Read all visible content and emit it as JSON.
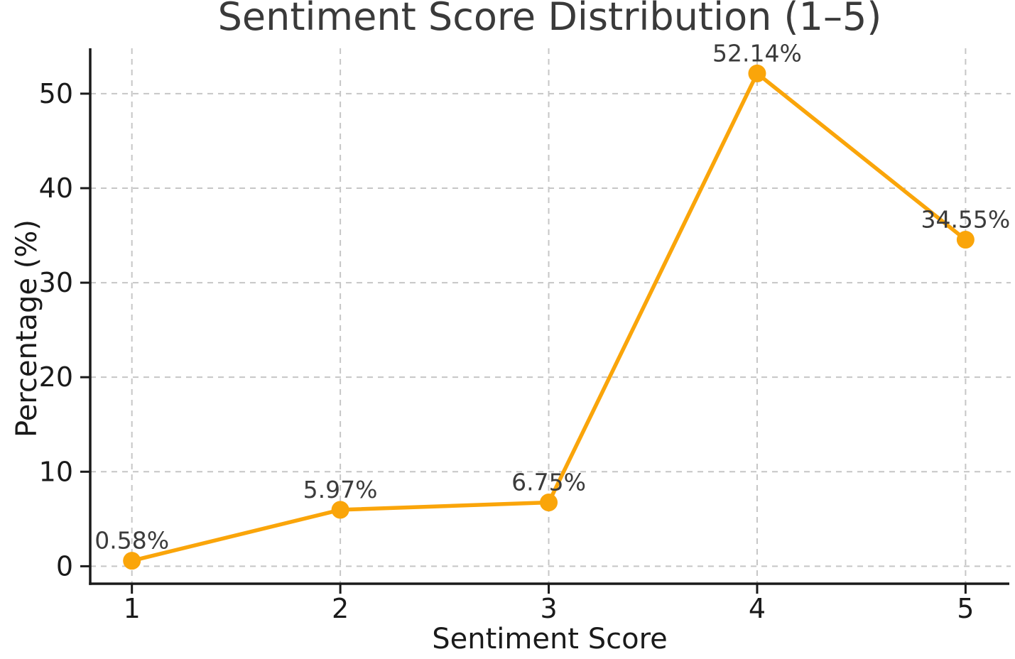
{
  "chart_data": {
    "type": "line",
    "title": "Sentiment Score Distribution (1–5)",
    "xlabel": "Sentiment Score",
    "ylabel": "Percentage (%)",
    "x": [
      1,
      2,
      3,
      4,
      5
    ],
    "values": [
      0.58,
      5.97,
      6.75,
      52.14,
      34.55
    ],
    "point_labels": [
      "0.58%",
      "5.97%",
      "6.75%",
      "52.14%",
      "34.55%"
    ],
    "x_tick_labels": [
      "1",
      "2",
      "3",
      "4",
      "5"
    ],
    "y_ticks": [
      0,
      10,
      20,
      30,
      40,
      50
    ],
    "xlim": [
      0.8,
      5.21
    ],
    "ylim": [
      -1.85,
      54.8
    ],
    "grid": {
      "visible": true,
      "style": "dashed"
    },
    "legend": "none",
    "marker": "circle",
    "colors": {
      "line": "#FAA50A",
      "marker": "#FAA50A",
      "grid": "#C6C6C6",
      "spine": "#1A1A1A",
      "tick_label": "#1A1A1A",
      "title": "#3A3A3A",
      "data_label": "#3B3B3B",
      "background": "#FFFFFF"
    }
  }
}
